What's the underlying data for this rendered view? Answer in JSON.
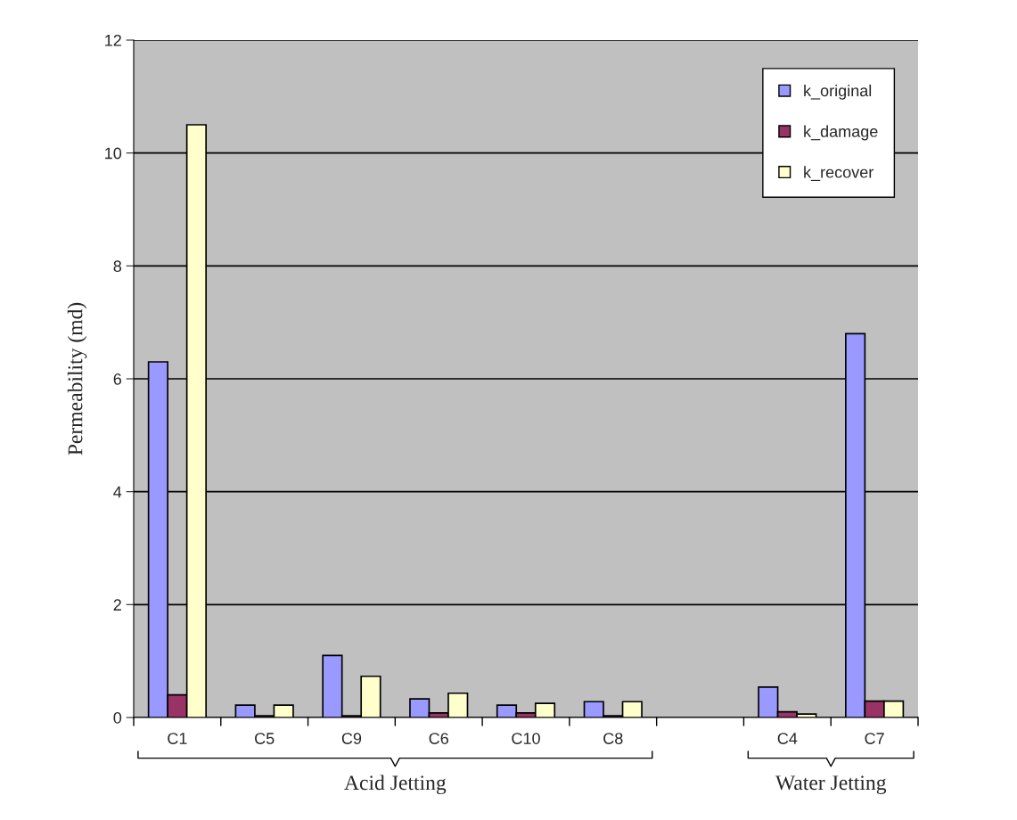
{
  "chart_data": {
    "type": "bar",
    "ylabel": "Permeability (md)",
    "categories": [
      "C1",
      "C5",
      "C9",
      "C6",
      "C10",
      "C8",
      null,
      "C4",
      "C7"
    ],
    "series": [
      {
        "name": "k_original",
        "color": "#9999ff",
        "values": [
          6.3,
          0.22,
          1.1,
          0.33,
          0.22,
          0.28,
          null,
          0.54,
          6.8
        ]
      },
      {
        "name": "k_damage",
        "color": "#993366",
        "values": [
          0.4,
          0.03,
          0.03,
          0.08,
          0.08,
          0.03,
          null,
          0.1,
          0.29
        ]
      },
      {
        "name": "k_recover",
        "color": "#ffffcc",
        "values": [
          10.5,
          0.22,
          0.73,
          0.43,
          0.25,
          0.28,
          null,
          0.06,
          0.29
        ]
      }
    ],
    "ylim": [
      0,
      12
    ],
    "yticks": [
      0,
      2,
      4,
      6,
      8,
      10,
      12
    ],
    "grid": "y",
    "legend": "top right",
    "annotations": [
      "Acid Jetting",
      "Water Jetting"
    ]
  }
}
